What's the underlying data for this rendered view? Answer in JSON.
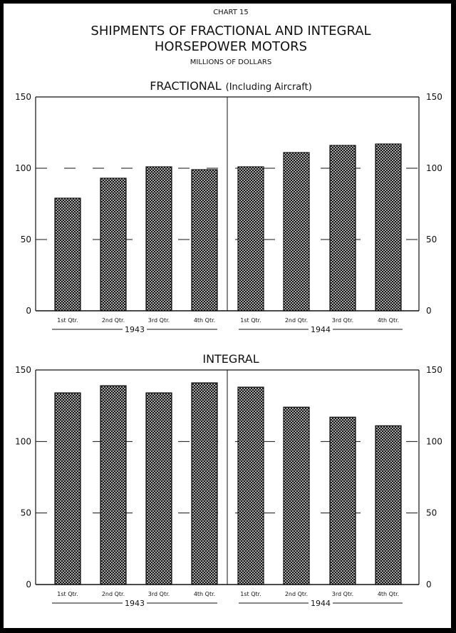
{
  "header": {
    "chart_label": "CHART 15",
    "title_line1": "SHIPMENTS OF FRACTIONAL AND INTEGRAL",
    "title_line2": "HORSEPOWER MOTORS",
    "units": "MILLIONS OF DOLLARS"
  },
  "colors": {
    "ink": "#111111",
    "paper": "#ffffff",
    "frame": "#000000"
  },
  "chart_data": [
    {
      "type": "bar",
      "title": "FRACTIONAL",
      "subtitle": "(Including Aircraft)",
      "categories": [
        "1st Qtr.",
        "2nd Qtr.",
        "3rd Qtr.",
        "4th Qtr.",
        "1st Qtr.",
        "2nd Qtr.",
        "3rd Qtr.",
        "4th Qtr."
      ],
      "groups": [
        "1943",
        "1944"
      ],
      "values": [
        79,
        93,
        101,
        99,
        101,
        111,
        116,
        117
      ],
      "ylim": [
        0,
        150
      ],
      "yticks": [
        "0",
        "50",
        "100",
        "150"
      ],
      "axes": "left-and-right",
      "grid": "dashed"
    },
    {
      "type": "bar",
      "title": "INTEGRAL",
      "subtitle": "",
      "categories": [
        "1st Qtr.",
        "2nd Qtr.",
        "3rd Qtr.",
        "4th Qtr.",
        "1st Qtr.",
        "2nd Qtr.",
        "3rd Qtr.",
        "4th Qtr."
      ],
      "groups": [
        "1943",
        "1944"
      ],
      "values": [
        134,
        139,
        134,
        141,
        138,
        124,
        117,
        111
      ],
      "ylim": [
        0,
        150
      ],
      "yticks": [
        "0",
        "50",
        "100",
        "150"
      ],
      "axes": "left-and-right",
      "grid": "dashed"
    }
  ]
}
